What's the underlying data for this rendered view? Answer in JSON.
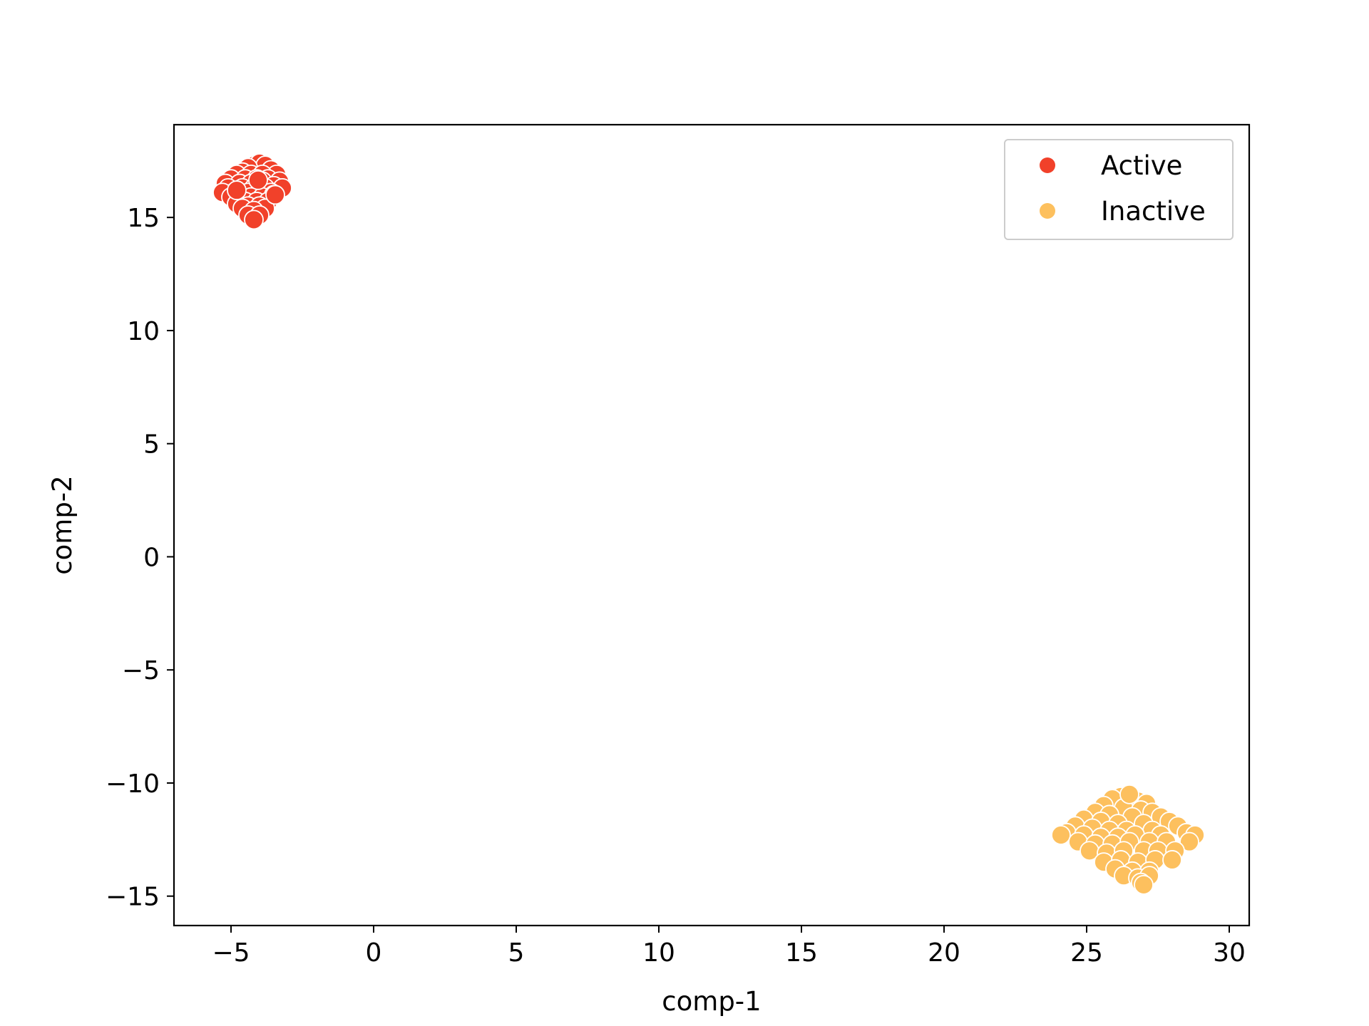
{
  "chart_data": {
    "type": "scatter",
    "xlabel": "comp-1",
    "ylabel": "comp-2",
    "xlim": [
      -7,
      30.7
    ],
    "ylim": [
      -16.3,
      19.1
    ],
    "xticks": [
      -5,
      0,
      5,
      10,
      15,
      20,
      25,
      30
    ],
    "xtick_labels": [
      "−5",
      "0",
      "5",
      "10",
      "15",
      "20",
      "25",
      "30"
    ],
    "yticks": [
      -15,
      -10,
      -5,
      0,
      5,
      10,
      15
    ],
    "ytick_labels": [
      "−15",
      "−10",
      "−5",
      "0",
      "5",
      "10",
      "15"
    ],
    "grid": false,
    "legend_position": "top-right",
    "series": [
      {
        "name": "Active",
        "color": "#f1412a",
        "points": [
          [
            -4.2,
            17.3
          ],
          [
            -4.0,
            17.4
          ],
          [
            -3.8,
            17.3
          ],
          [
            -4.4,
            17.2
          ],
          [
            -3.6,
            17.1
          ],
          [
            -4.6,
            17.0
          ],
          [
            -4.8,
            16.9
          ],
          [
            -3.4,
            16.9
          ],
          [
            -4.3,
            16.9
          ],
          [
            -3.9,
            16.9
          ],
          [
            -5.0,
            16.7
          ],
          [
            -4.5,
            16.7
          ],
          [
            -4.1,
            16.7
          ],
          [
            -3.7,
            16.7
          ],
          [
            -3.3,
            16.6
          ],
          [
            -5.2,
            16.5
          ],
          [
            -4.7,
            16.5
          ],
          [
            -4.3,
            16.5
          ],
          [
            -3.9,
            16.6
          ],
          [
            -3.5,
            16.4
          ],
          [
            -3.2,
            16.3
          ],
          [
            -5.1,
            16.3
          ],
          [
            -4.6,
            16.3
          ],
          [
            -4.2,
            16.3
          ],
          [
            -3.8,
            16.3
          ],
          [
            -4.9,
            16.1
          ],
          [
            -4.4,
            16.1
          ],
          [
            -4.0,
            16.1
          ],
          [
            -3.6,
            16.1
          ],
          [
            -5.3,
            16.1
          ],
          [
            -4.7,
            15.9
          ],
          [
            -4.3,
            15.9
          ],
          [
            -3.9,
            15.9
          ],
          [
            -3.5,
            16.0
          ],
          [
            -5.0,
            15.9
          ],
          [
            -4.5,
            15.7
          ],
          [
            -4.1,
            15.7
          ],
          [
            -3.7,
            15.7
          ],
          [
            -4.8,
            15.6
          ],
          [
            -4.4,
            15.5
          ],
          [
            -4.0,
            15.5
          ],
          [
            -3.8,
            15.4
          ],
          [
            -4.6,
            15.4
          ],
          [
            -4.2,
            15.3
          ],
          [
            -4.4,
            15.1
          ],
          [
            -4.0,
            15.1
          ],
          [
            -4.2,
            14.9
          ],
          [
            -4.8,
            16.2
          ],
          [
            -4.05,
            16.65
          ],
          [
            -3.45,
            16.0
          ]
        ]
      },
      {
        "name": "Inactive",
        "color": "#fdc05e",
        "points": [
          [
            26.2,
            -10.6
          ],
          [
            26.5,
            -10.6
          ],
          [
            25.9,
            -10.7
          ],
          [
            26.8,
            -10.8
          ],
          [
            27.1,
            -10.9
          ],
          [
            25.6,
            -11.0
          ],
          [
            26.3,
            -11.1
          ],
          [
            26.9,
            -11.2
          ],
          [
            27.3,
            -11.3
          ],
          [
            25.3,
            -11.3
          ],
          [
            25.8,
            -11.4
          ],
          [
            26.6,
            -11.5
          ],
          [
            27.6,
            -11.5
          ],
          [
            24.9,
            -11.6
          ],
          [
            25.5,
            -11.7
          ],
          [
            26.1,
            -11.8
          ],
          [
            27.0,
            -11.8
          ],
          [
            27.9,
            -11.7
          ],
          [
            24.6,
            -11.9
          ],
          [
            25.2,
            -12.0
          ],
          [
            25.8,
            -12.1
          ],
          [
            26.4,
            -12.1
          ],
          [
            27.3,
            -12.1
          ],
          [
            28.2,
            -11.9
          ],
          [
            24.3,
            -12.2
          ],
          [
            24.9,
            -12.3
          ],
          [
            25.5,
            -12.4
          ],
          [
            26.1,
            -12.4
          ],
          [
            26.7,
            -12.3
          ],
          [
            27.6,
            -12.3
          ],
          [
            28.5,
            -12.2
          ],
          [
            28.8,
            -12.3
          ],
          [
            24.1,
            -12.3
          ],
          [
            24.7,
            -12.6
          ],
          [
            25.3,
            -12.7
          ],
          [
            25.9,
            -12.7
          ],
          [
            26.5,
            -12.6
          ],
          [
            27.2,
            -12.6
          ],
          [
            27.8,
            -12.6
          ],
          [
            28.6,
            -12.6
          ],
          [
            25.1,
            -13.0
          ],
          [
            25.7,
            -13.1
          ],
          [
            26.3,
            -13.0
          ],
          [
            27.0,
            -13.0
          ],
          [
            27.5,
            -13.0
          ],
          [
            28.1,
            -13.0
          ],
          [
            25.6,
            -13.5
          ],
          [
            26.2,
            -13.4
          ],
          [
            26.8,
            -13.5
          ],
          [
            27.4,
            -13.4
          ],
          [
            28.0,
            -13.4
          ],
          [
            26.0,
            -13.8
          ],
          [
            26.6,
            -13.9
          ],
          [
            27.2,
            -13.9
          ],
          [
            26.3,
            -14.1
          ],
          [
            26.8,
            -14.2
          ],
          [
            27.2,
            -14.1
          ],
          [
            26.9,
            -14.4
          ],
          [
            27.0,
            -14.5
          ],
          [
            26.5,
            -10.5
          ]
        ]
      }
    ]
  }
}
